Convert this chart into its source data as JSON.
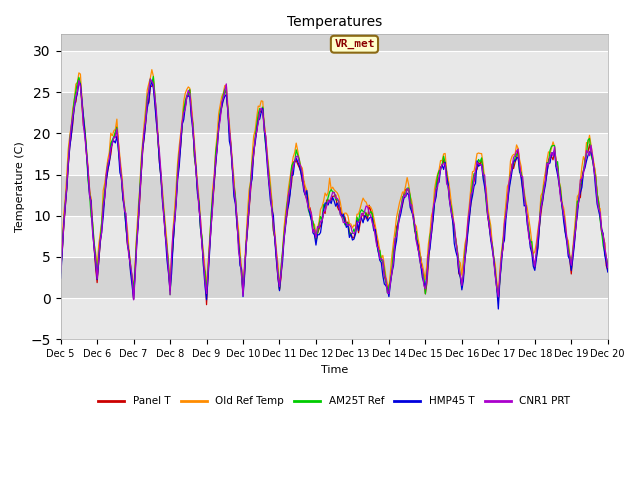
{
  "title": "Temperatures",
  "xlabel": "Time",
  "ylabel": "Temperature (C)",
  "ylim": [
    -5,
    32
  ],
  "xlim": [
    0,
    360
  ],
  "yticks": [
    -5,
    0,
    5,
    10,
    15,
    20,
    25,
    30
  ],
  "xtick_labels": [
    "Dec 5",
    "Dec 6",
    "Dec 7",
    "Dec 8",
    "Dec 9",
    "Dec 10",
    "Dec 11",
    "Dec 12",
    "Dec 13",
    "Dec 14",
    "Dec 15",
    "Dec 16",
    "Dec 17",
    "Dec 18",
    "Dec 19",
    "Dec 20"
  ],
  "xtick_positions": [
    0,
    24,
    48,
    72,
    96,
    120,
    144,
    168,
    192,
    216,
    240,
    264,
    288,
    312,
    336,
    360
  ],
  "annotation_text": "VR_met",
  "series": [
    {
      "label": "Panel T",
      "color": "#cc0000"
    },
    {
      "label": "Old Ref Temp",
      "color": "#ff8c00"
    },
    {
      "label": "AM25T Ref",
      "color": "#00cc00"
    },
    {
      "label": "HMP45 T",
      "color": "#0000dd"
    },
    {
      "label": "CNR1 PRT",
      "color": "#aa00cc"
    }
  ],
  "day_peaks": [
    26.0,
    20.0,
    26.5,
    25.0,
    25.0,
    23.0,
    17.0,
    12.5,
    10.5,
    13.0,
    16.5,
    17.0,
    17.5,
    18.0
  ],
  "day_mins": [
    3.0,
    2.5,
    0.0,
    1.0,
    0.0,
    0.5,
    1.0,
    7.0,
    7.5,
    0.5,
    1.0,
    1.0,
    0.0,
    3.5
  ],
  "peak_hour": [
    13,
    13,
    13,
    13,
    13,
    13,
    12,
    12,
    12,
    13,
    13,
    13,
    13,
    13
  ],
  "series_offsets": [
    [
      0.0,
      0.0
    ],
    [
      1.0,
      0.5
    ],
    [
      0.2,
      0.3
    ],
    [
      -0.3,
      0.1
    ],
    [
      0.1,
      0.2
    ]
  ]
}
